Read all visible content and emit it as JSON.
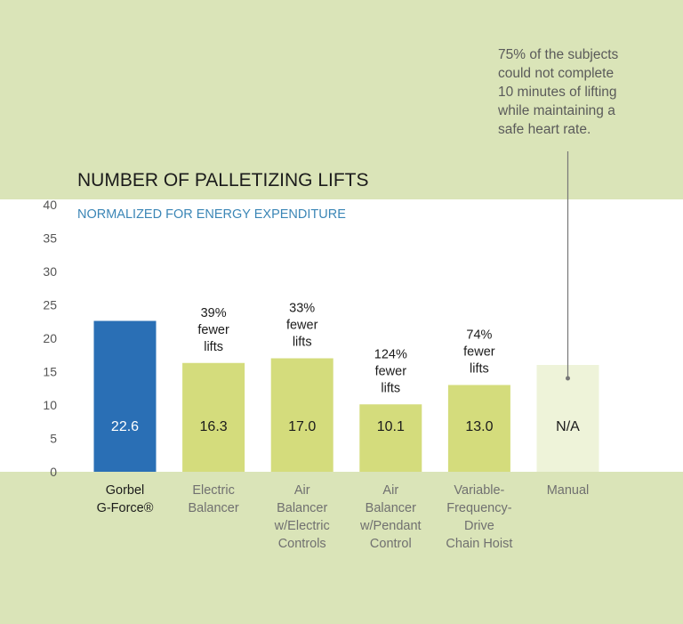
{
  "chart_data": {
    "type": "bar",
    "title": "NUMBER OF PALLETIZING LIFTS",
    "subtitle": "NORMALIZED FOR ENERGY EXPENDITURE",
    "ylim": [
      0,
      40
    ],
    "yticks": [
      0,
      5,
      10,
      15,
      20,
      25,
      30,
      35,
      40
    ],
    "categories": [
      [
        "Gorbel",
        "G-Force®"
      ],
      [
        "Electric",
        "Balancer"
      ],
      [
        "Air",
        "Balancer",
        "w/Electric",
        "Controls"
      ],
      [
        "Air",
        "Balancer",
        "w/Pendant",
        "Control"
      ],
      [
        "Variable-",
        "Frequency-",
        "Drive",
        "Chain Hoist"
      ],
      [
        "Manual"
      ]
    ],
    "values": [
      22.6,
      16.3,
      17.0,
      10.1,
      13.0,
      16.0
    ],
    "value_labels": [
      "22.6",
      "16.3",
      "17.0",
      "10.1",
      "13.0",
      "N/A"
    ],
    "annotations": [
      null,
      [
        "39%",
        "fewer",
        "lifts"
      ],
      [
        "33%",
        "fewer",
        "lifts"
      ],
      [
        "124%",
        "fewer",
        "lifts"
      ],
      [
        "74%",
        "fewer",
        "lifts"
      ],
      null
    ],
    "callout": [
      "75% of the subjects",
      "could not complete",
      "10 minutes of lifting",
      "while maintaining a",
      "safe heart rate."
    ],
    "colors": {
      "highlight": "#2a6fb5",
      "bar": "#d4dc7c",
      "na_bar": "#eef3d9",
      "background": "#dae4b8",
      "plot_area": "#ffffff"
    }
  }
}
